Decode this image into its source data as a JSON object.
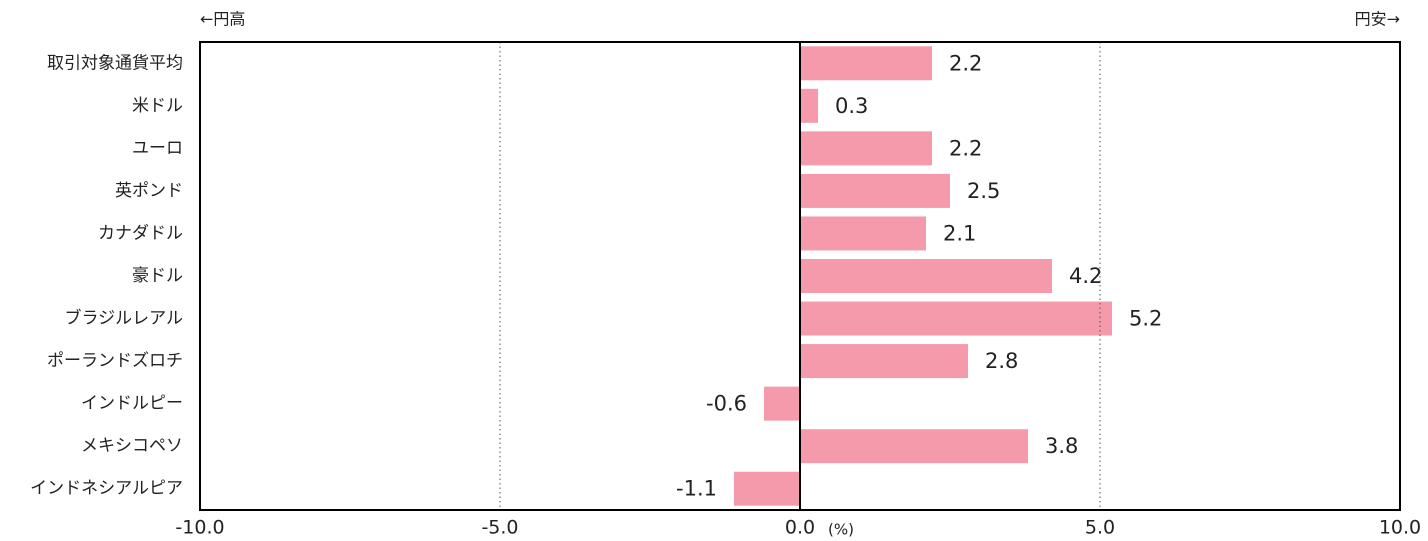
{
  "chart_data": {
    "type": "hbar",
    "annotations": [
      "←円高",
      "円安→"
    ],
    "x_unit": "(%)",
    "categories": [
      "取引対象通貨平均",
      "米ドル",
      "ユーロ",
      "英ポンド",
      "カナダドル",
      "豪ドル",
      "ブラジルレアル",
      "ポーランドズロチ",
      "インドルピー",
      "メキシコペソ",
      "インドネシアルピア"
    ],
    "values": [
      2.2,
      0.3,
      2.2,
      2.5,
      2.1,
      4.2,
      5.2,
      2.8,
      -0.6,
      3.8,
      -1.1
    ],
    "color": "#f49aab",
    "xlim": [
      -10,
      10
    ],
    "xticks": [
      {
        "value": -10,
        "label": "-10.0"
      },
      {
        "value": -5,
        "label": "-5.0"
      },
      {
        "value": 0,
        "label": "0.0"
      },
      {
        "value": 5,
        "label": "5.0"
      },
      {
        "value": 10,
        "label": "10.0"
      }
    ],
    "grid": true
  }
}
